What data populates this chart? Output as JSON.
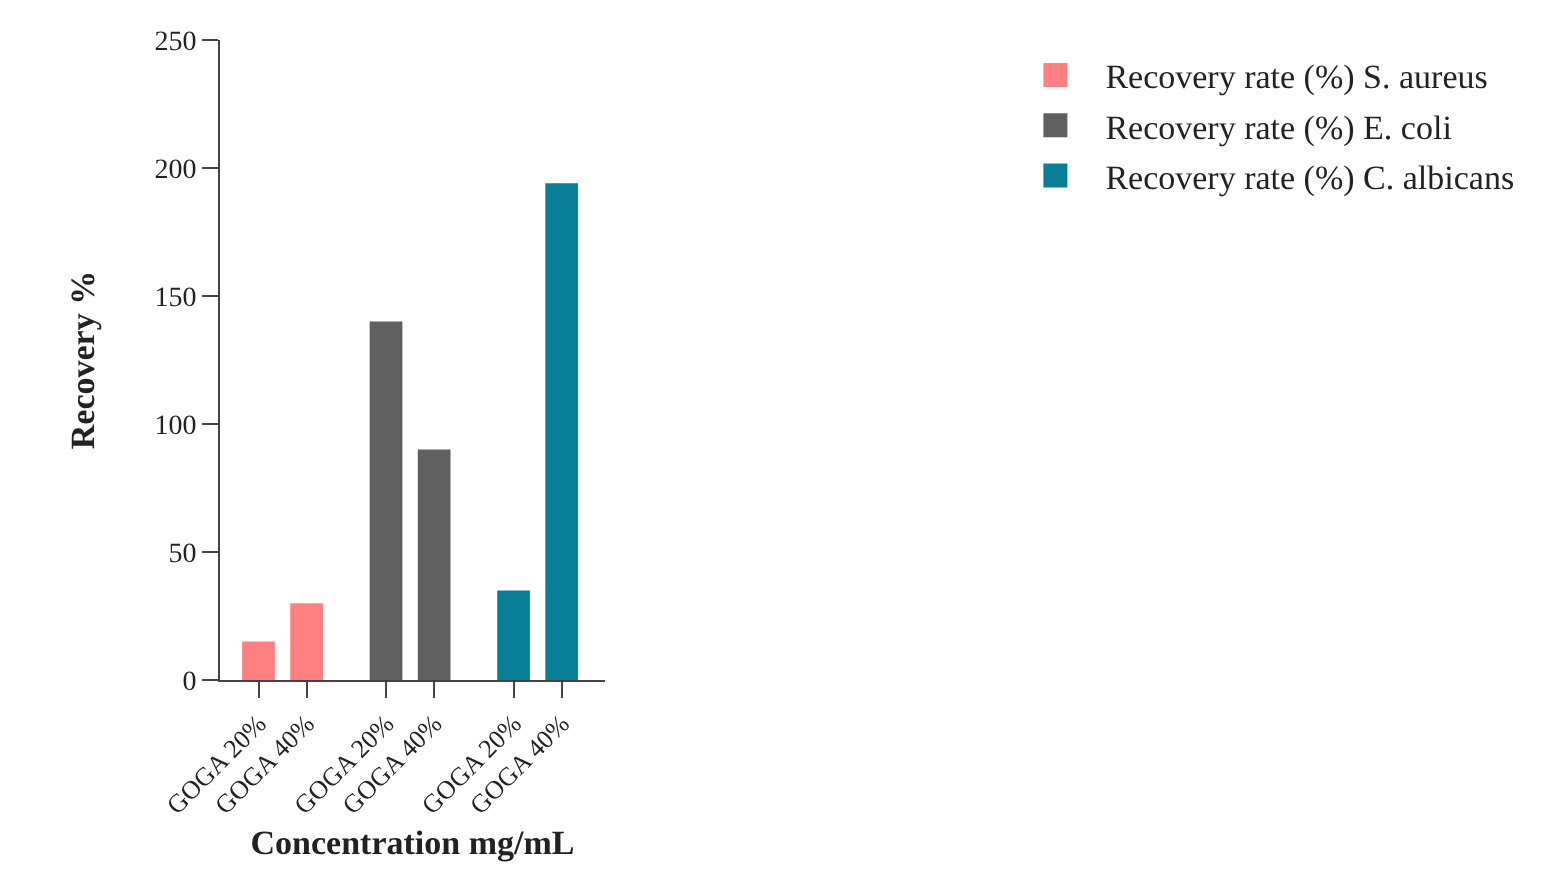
{
  "chart_data": {
    "type": "bar",
    "xlabel": "Concentration mg/mL",
    "ylabel": "Recovery %",
    "categories": [
      "GOGA 20%",
      "GOGA 40%",
      "GOGA 20%",
      "GOGA 40%",
      "GOGA 20%",
      "GOGA 40%"
    ],
    "series": [
      {
        "name": "Recovery rate (%) S. aureus",
        "color": "#ff8080",
        "values": [
          15,
          30,
          null,
          null,
          null,
          null
        ]
      },
      {
        "name": "Recovery rate (%) E. coli",
        "color": "#606060",
        "values": [
          null,
          null,
          140,
          90,
          null,
          null
        ]
      },
      {
        "name": "Recovery rate (%) C. albicans",
        "color": "#087f96",
        "values": [
          null,
          null,
          null,
          null,
          35,
          194
        ]
      }
    ],
    "ylim": [
      0,
      250
    ],
    "yticks": [
      0,
      50,
      100,
      150,
      200,
      250
    ],
    "grid": false,
    "legend": "top right"
  }
}
